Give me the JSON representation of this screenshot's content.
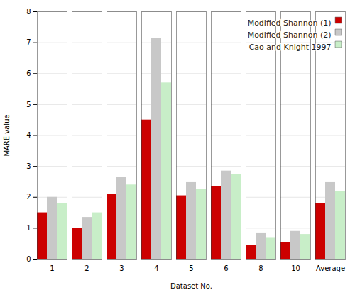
{
  "chart_data": {
    "type": "bar",
    "categories": [
      "1",
      "2",
      "3",
      "4",
      "5",
      "6",
      "8",
      "10",
      "Average"
    ],
    "series": [
      {
        "name": "Modified Shannon (1)",
        "color": "#CC0000",
        "values": [
          1.5,
          1.0,
          2.1,
          4.5,
          2.05,
          2.35,
          0.45,
          0.55,
          1.8
        ]
      },
      {
        "name": "Modified Shannon (2)",
        "color": "#C8C8C8",
        "values": [
          2.0,
          1.35,
          2.65,
          7.15,
          2.5,
          2.85,
          0.85,
          0.9,
          2.5
        ]
      },
      {
        "name": "Cao and Knight 1997",
        "color": "#C8EEC8",
        "values": [
          1.8,
          1.5,
          2.4,
          5.7,
          2.25,
          2.75,
          0.7,
          0.8,
          2.2
        ]
      }
    ],
    "xlabel": "Dataset No.",
    "ylabel": "MARE value",
    "ylim": [
      0,
      8
    ],
    "yticks": [
      0,
      1,
      2,
      3,
      4,
      5,
      6,
      7,
      8
    ],
    "grid": true,
    "legend": "upper right"
  }
}
